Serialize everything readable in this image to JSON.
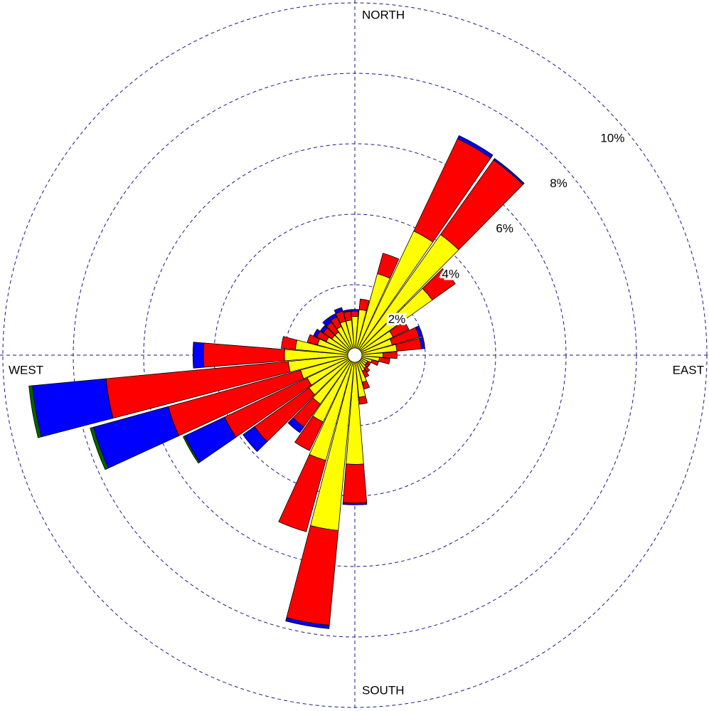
{
  "chart_data": {
    "type": "windrose",
    "rlim": [
      0,
      10
    ],
    "rticks": [
      {
        "value": 2,
        "label": "2%"
      },
      {
        "value": 4,
        "label": "4%"
      },
      {
        "value": 6,
        "label": "6%"
      },
      {
        "value": 8,
        "label": "8%"
      },
      {
        "value": 10,
        "label": "10%"
      }
    ],
    "compass": [
      "NORTH",
      "EAST",
      "SOUTH",
      "WEST"
    ],
    "grid": true,
    "grid_color": "#1a1a8c",
    "series": [
      {
        "color": "#ffff00",
        "values": [
          1.1,
          1.3,
          2.4,
          3.9,
          4.2,
          2.7,
          1.2,
          1.1,
          1.2,
          0.8,
          0.7,
          0.5,
          0.4,
          0.4,
          0.45,
          0.5,
          0.8,
          1.2,
          3.1,
          5.0,
          3.1,
          2.1,
          1.7,
          1.6,
          1.5,
          1.6,
          1.9,
          2.0,
          1.7,
          1.1,
          0.9,
          0.8,
          0.8,
          0.9,
          1.0,
          1.0
        ]
      },
      {
        "color": "#ff0000",
        "values": [
          0.15,
          0.3,
          0.6,
          2.9,
          2.6,
          0.8,
          0.5,
          0.8,
          0.7,
          0.4,
          0.3,
          0.2,
          0.1,
          0.1,
          0.15,
          0.2,
          0.2,
          0.2,
          1.1,
          2.7,
          2.1,
          0.9,
          0.8,
          1.9,
          2.6,
          3.9,
          5.2,
          2.3,
          0.4,
          0.3,
          0.3,
          0.3,
          0.35,
          0.3,
          0.3,
          0.25
        ]
      },
      {
        "color": "#0000ff",
        "values": [
          0.05,
          0,
          0,
          0.1,
          0.05,
          0,
          0,
          0.1,
          0.1,
          0,
          0,
          0,
          0,
          0,
          0,
          0,
          0,
          0,
          0.05,
          0.1,
          0,
          0,
          0.2,
          0.4,
          1.25,
          2.2,
          2.1,
          0.3,
          0,
          0,
          0.1,
          0.1,
          0.15,
          0.1,
          0.1,
          0.05
        ]
      },
      {
        "color": "#006400",
        "values": [
          0,
          0,
          0,
          0,
          0,
          0,
          0,
          0,
          0,
          0,
          0,
          0,
          0,
          0,
          0,
          0,
          0,
          0,
          0,
          0,
          0,
          0,
          0,
          0,
          0.05,
          0.1,
          0.1,
          0,
          0,
          0,
          0,
          0,
          0,
          0,
          0,
          0
        ]
      }
    ]
  }
}
